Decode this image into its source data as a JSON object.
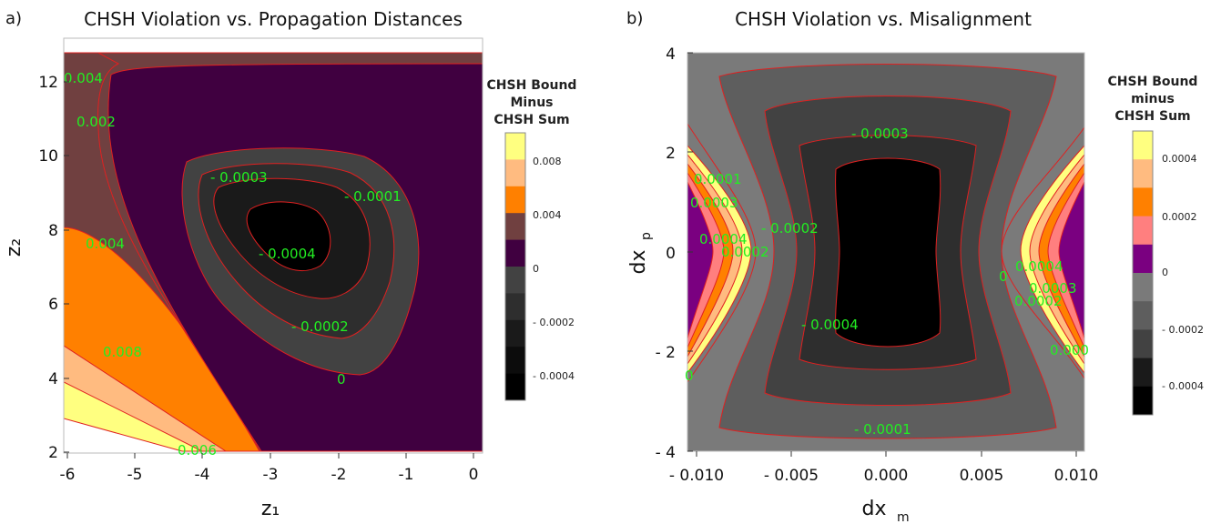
{
  "colors": {
    "contour_line": "#e02020",
    "contour_label": "#22ee22",
    "levels": [
      "#000000",
      "#1a1a1a",
      "#2e2e2e",
      "#424242",
      "#5e5e5e",
      "#7a7a7a",
      "#400040",
      "#7a0080",
      "#704040",
      "#ff7f7f",
      "#ff8000",
      "#ffbb80",
      "#ffff80"
    ]
  },
  "chart_data": [
    {
      "type": "contour",
      "panel_label": "a)",
      "title": "CHSH Violation vs. Propagation Distances",
      "xlabel": "z₁",
      "ylabel": "z₂",
      "xlim": [
        -6,
        0
      ],
      "ylim": [
        2,
        13
      ],
      "xticks": [
        "-6",
        "-5",
        "-4",
        "-3",
        "-2",
        "-1",
        "0"
      ],
      "yticks": [
        "2",
        "4",
        "6",
        "8",
        "10",
        "12"
      ],
      "minimum": {
        "x": -2.9,
        "y": 8.2
      },
      "contour_levels": [
        -0.0004,
        -0.0003,
        -0.0002,
        -0.0001,
        0,
        0.002,
        0.004,
        0.006,
        0.008
      ],
      "contour_labels": [
        "0.004",
        "0.002",
        "- 0.0003",
        "- 0.0001",
        "0.004",
        "- 0.0004",
        "- 0.0002",
        "0.008",
        "0",
        "0.006"
      ],
      "colorbar": {
        "title_lines": [
          "CHSH Bound",
          "Minus",
          "CHSH Sum"
        ],
        "ticks": [
          "0.008",
          "0.004",
          "0",
          "- 0.0002",
          "- 0.0004"
        ],
        "bands": [
          "#ffff80",
          "#ffbb80",
          "#ff8000",
          "#704040",
          "#400040",
          "#424242",
          "#2e2e2e",
          "#1a1a1a",
          "#0c0c0c",
          "#000000"
        ]
      }
    },
    {
      "type": "contour",
      "panel_label": "b)",
      "title": "CHSH Violation vs. Misalignment",
      "xlabel": "dx",
      "xlabel_sub": "m",
      "ylabel": "dx",
      "ylabel_sub": "p",
      "xlim": [
        -0.01,
        0.01
      ],
      "ylim": [
        -4,
        4
      ],
      "xticks": [
        "- 0.010",
        "- 0.005",
        "0.000",
        "0.005",
        "0.010"
      ],
      "yticks": [
        "- 4",
        "- 2",
        "0",
        "2",
        "4"
      ],
      "contour_levels": [
        -0.0004,
        -0.0003,
        -0.0002,
        -0.0001,
        0,
        0.0001,
        0.0002,
        0.0003,
        0.0004
      ],
      "contour_labels": [
        "- 0.0003",
        "0.0001",
        "0.0003",
        "- 0.0002",
        "0.0004",
        "0.0002",
        "0.0004",
        "0",
        "0.0003",
        "0.0002",
        "- 0.0004",
        "0.000",
        "0",
        "- 0.0001"
      ],
      "colorbar": {
        "title_lines": [
          "CHSH Bound",
          "minus",
          "CHSH Sum"
        ],
        "ticks": [
          "0.0004",
          "0.0002",
          "0",
          "- 0.0002",
          "- 0.0004"
        ],
        "bands": [
          "#ffff80",
          "#ffbb80",
          "#ff8000",
          "#ff7f7f",
          "#7a0080",
          "#7a7a7a",
          "#5e5e5e",
          "#424242",
          "#1a1a1a",
          "#000000"
        ]
      }
    }
  ]
}
